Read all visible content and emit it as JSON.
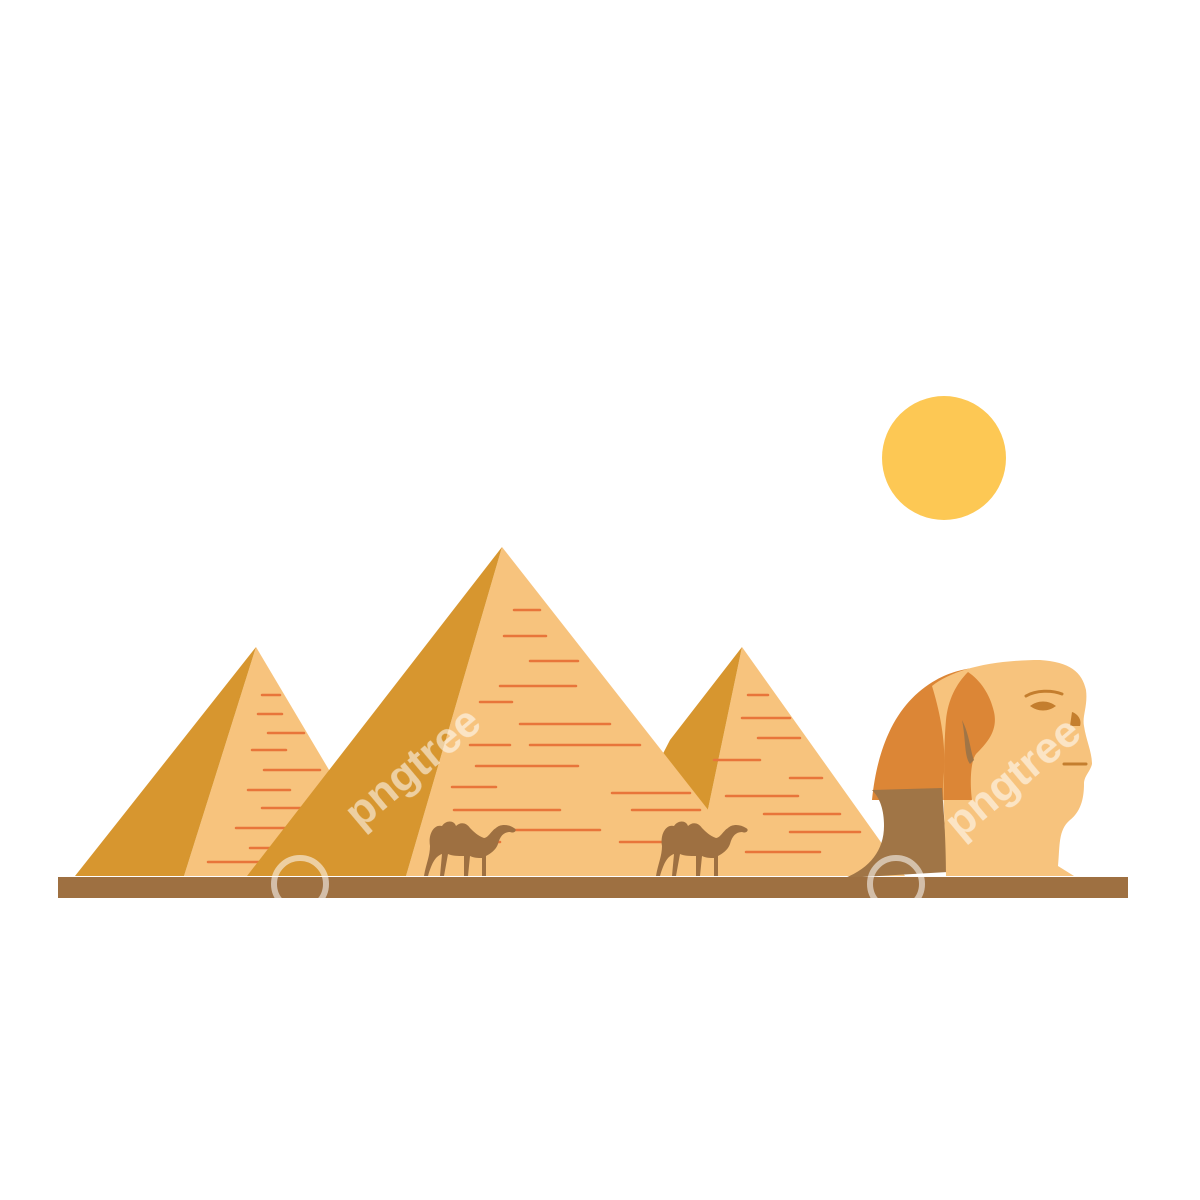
{
  "scene": {
    "subject": "pyramids-and-sphinx",
    "watermark_text": "pngtree",
    "colors": {
      "background": "#ffffff",
      "sun": "#FDC854",
      "pyramid_light_face": "#F7C37D",
      "pyramid_shadow_face": "#D7962F",
      "brick_lines": "#E8753A",
      "ground": "#9E7041",
      "sphinx_body": "#F7C37D",
      "sphinx_headdress_shadow": "#DC8636",
      "sphinx_neck_shadow": "#A07546",
      "sphinx_detail": "#C47E2E",
      "camels": "#9E7041",
      "watermark": "#ffffff"
    },
    "camel_count": 2,
    "pyramid_count": 3
  }
}
